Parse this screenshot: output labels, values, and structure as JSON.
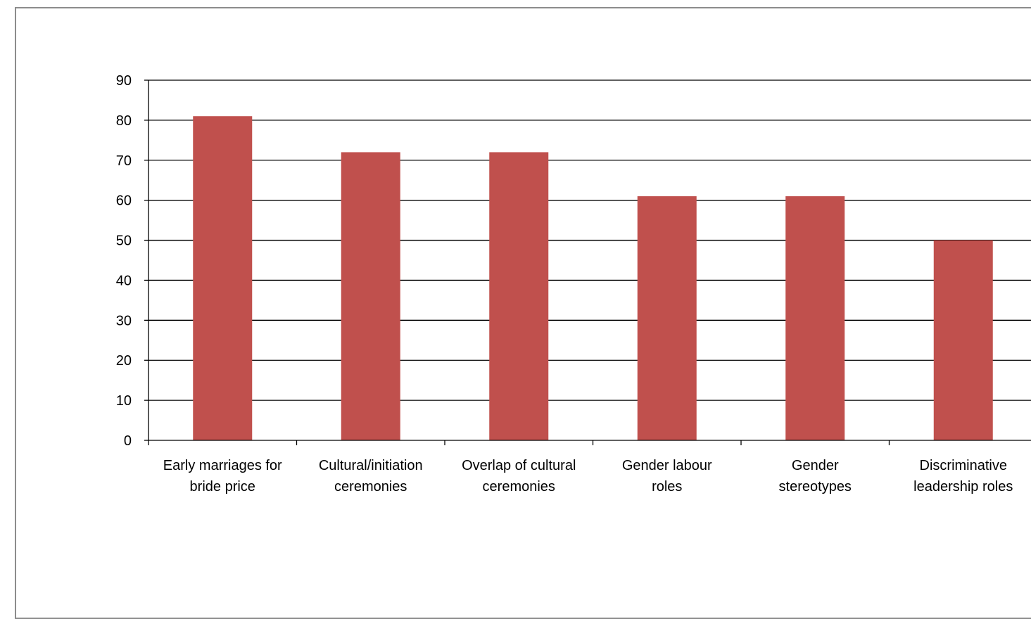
{
  "chart_data": {
    "type": "bar",
    "categories": [
      [
        "Early marriages for",
        "bride price"
      ],
      [
        "Cultural/initiation",
        "ceremonies"
      ],
      [
        "Overlap of cultural",
        "ceremonies"
      ],
      [
        "Gender labour",
        "roles"
      ],
      [
        "Gender",
        "stereotypes"
      ],
      [
        "Discriminative",
        "leadership roles"
      ]
    ],
    "values": [
      81,
      72,
      72,
      61,
      61,
      50
    ],
    "ylim": [
      0,
      90
    ],
    "yticks": [
      0,
      10,
      20,
      30,
      40,
      50,
      60,
      70,
      80,
      90
    ],
    "grid": true,
    "legend": "none",
    "title": "",
    "xlabel": "",
    "ylabel": "",
    "bar_color": "#c0504d",
    "grid_color": "#000000"
  }
}
